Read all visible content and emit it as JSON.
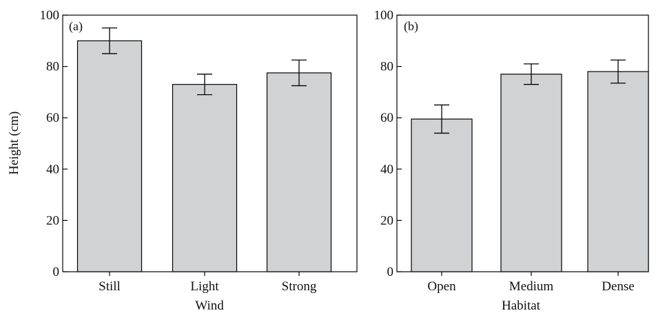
{
  "chart_data": [
    {
      "type": "bar",
      "panel_label": "(a)",
      "xlabel": "Wind",
      "ylabel": "Height (cm)",
      "ylim": [
        0,
        100
      ],
      "yticks": [
        "0",
        "20",
        "40",
        "60",
        "80",
        "100"
      ],
      "categories": [
        "Still",
        "Light",
        "Strong"
      ],
      "values": [
        90,
        73,
        77.5
      ],
      "error": [
        5,
        4,
        5
      ],
      "bar_color": "#d1d2d4",
      "grid": false
    },
    {
      "type": "bar",
      "panel_label": "(b)",
      "xlabel": "Habitat",
      "ylabel": "",
      "ylim": [
        0,
        100
      ],
      "yticks": [
        "0",
        "20",
        "40",
        "60",
        "80",
        "100"
      ],
      "categories": [
        "Open",
        "Medium",
        "Dense"
      ],
      "values": [
        59.5,
        77,
        78
      ],
      "error": [
        5.5,
        4,
        4.5
      ],
      "bar_color": "#d1d2d4",
      "grid": false
    }
  ]
}
